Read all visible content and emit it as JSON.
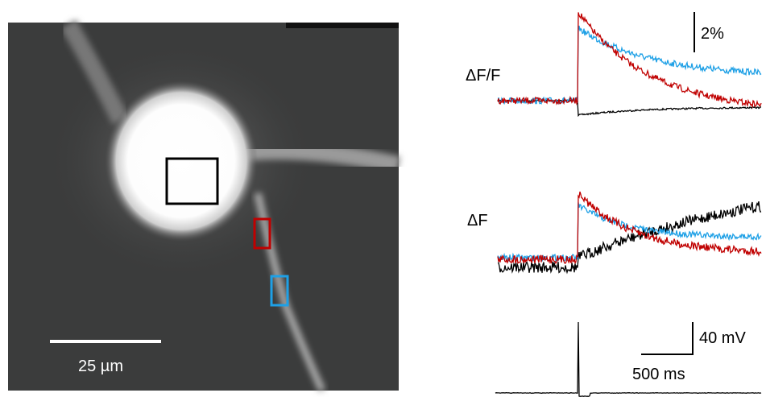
{
  "image": {
    "scale_bar_label": "25 µm"
  },
  "traces": {
    "top_label": "ΔF/F",
    "top_scale": "2%",
    "middle_label": "ΔF",
    "voltage_scale": "40 mV",
    "time_scale": "500 ms"
  }
}
